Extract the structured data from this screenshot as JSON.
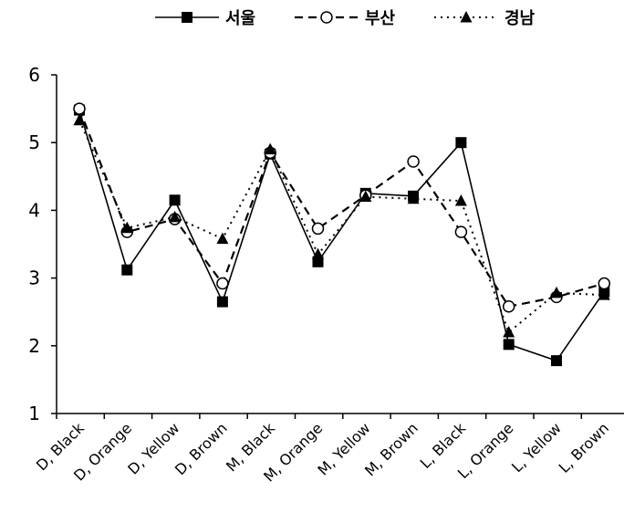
{
  "chart_data": {
    "type": "line",
    "categories": [
      "D, Black",
      "D, Orange",
      "D, Yellow",
      "D, Brown",
      "M, Black",
      "M, Orange",
      "M, Yellow",
      "M, Brown",
      "L, Black",
      "L, Orange",
      "L, Yellow",
      "L, Brown"
    ],
    "ylim": [
      1,
      6
    ],
    "yticks": [
      "1",
      "2",
      "3",
      "4",
      "5",
      "6"
    ],
    "grid": false,
    "legend_position": "top",
    "series": [
      {
        "name": "서울",
        "marker": "square-filled",
        "dash": "solid",
        "color": "#000000",
        "values": [
          5.48,
          3.12,
          4.15,
          2.65,
          4.83,
          3.24,
          4.25,
          4.21,
          5.0,
          2.02,
          1.78,
          2.8
        ]
      },
      {
        "name": "부산",
        "marker": "circle-open",
        "dash": "dashed",
        "color": "#000000",
        "values": [
          5.5,
          3.68,
          3.87,
          2.92,
          4.85,
          3.73,
          4.22,
          4.72,
          3.68,
          2.58,
          2.72,
          2.92
        ]
      },
      {
        "name": "경남",
        "marker": "triangle-filled",
        "dash": "dotted",
        "color": "#000000",
        "values": [
          5.33,
          3.74,
          3.9,
          3.58,
          4.9,
          3.35,
          4.2,
          4.17,
          4.14,
          2.2,
          2.78,
          2.75
        ]
      }
    ]
  }
}
